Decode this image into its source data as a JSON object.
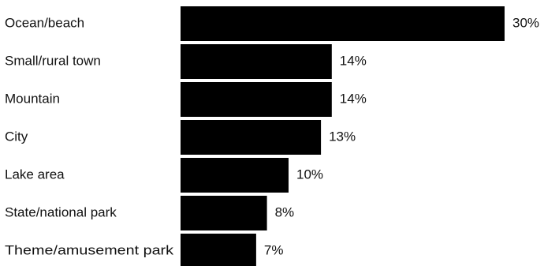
{
  "chart_data": {
    "type": "bar",
    "orientation": "horizontal",
    "categories": [
      "Ocean/beach",
      "Small/rural town",
      "Mountain",
      "City",
      "Lake area",
      "State/national park",
      "Theme/amusement park"
    ],
    "values": [
      30,
      14,
      14,
      13,
      10,
      8,
      7
    ],
    "value_labels": [
      "30%",
      "14%",
      "14%",
      "13%",
      "10%",
      "8%",
      "7%"
    ],
    "unit": "%",
    "xlim": [
      0,
      30
    ],
    "grid": false,
    "legend": "none",
    "bar_color": "#000000",
    "text_color": "#111111",
    "title": "",
    "xlabel": "",
    "ylabel": ""
  }
}
